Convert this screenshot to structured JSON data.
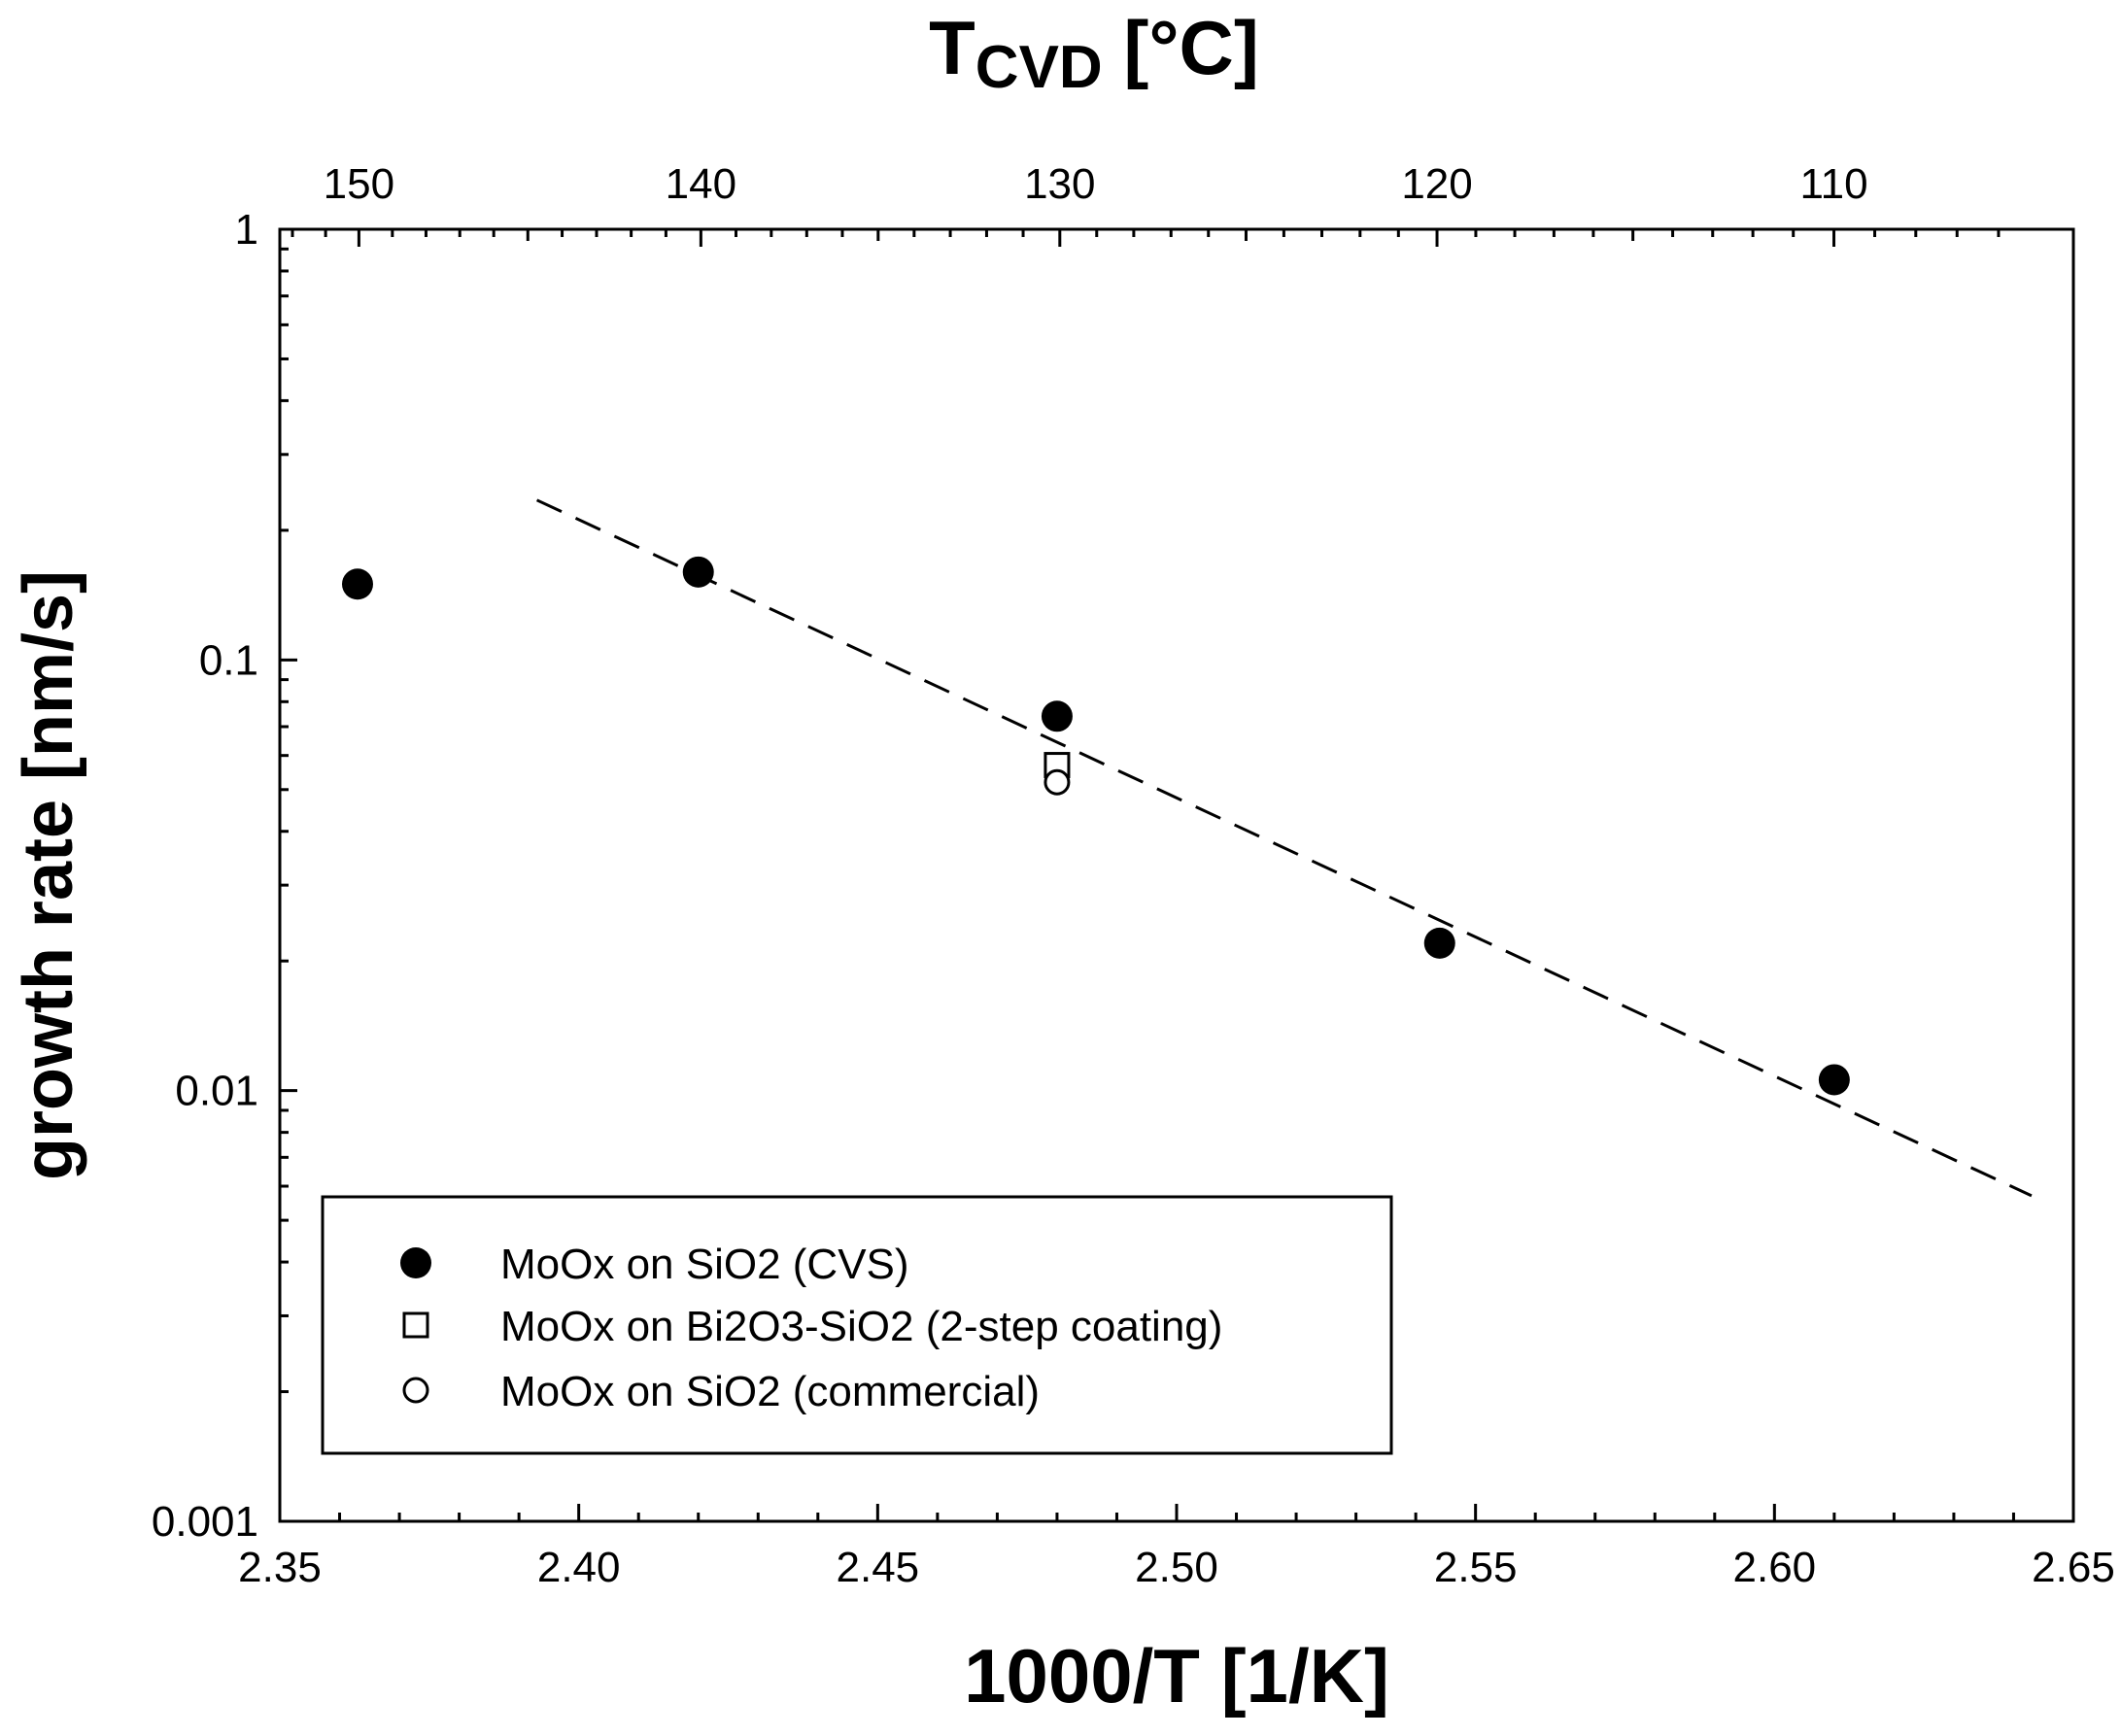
{
  "chart_data": {
    "type": "scatter",
    "title": "",
    "xlabel": "1000/T [1/K]",
    "ylabel": "growth rate [nm/s]",
    "top_xlabel": {
      "main": "T",
      "subscript": "CVD",
      "unit": " [°C]"
    },
    "xlim": [
      2.35,
      2.65
    ],
    "ylim": [
      0.001,
      1
    ],
    "yscale": "log",
    "x_ticks": [
      2.35,
      2.4,
      2.45,
      2.5,
      2.55,
      2.6,
      2.65
    ],
    "x_tick_labels": [
      "2.35",
      "2.40",
      "2.45",
      "2.50",
      "2.55",
      "2.60",
      "2.65"
    ],
    "y_ticks": [
      0.001,
      0.01,
      0.1,
      1
    ],
    "y_tick_labels": [
      "0.001",
      "0.01",
      "0.1",
      "1"
    ],
    "top_ticks_celsius": [
      150,
      140,
      130,
      120,
      110
    ],
    "top_tick_labels": [
      "150",
      "140",
      "130",
      "120",
      "110"
    ],
    "grid": false,
    "legend_position": "bottom-left",
    "series": [
      {
        "name": "MoOx on SiO2 (CVS)",
        "marker": "filled-circle",
        "x": [
          2.363,
          2.42,
          2.48,
          2.544,
          2.61
        ],
        "y": [
          0.15,
          0.16,
          0.074,
          0.022,
          0.0106
        ]
      },
      {
        "name": "MoOx on Bi2O3-SiO2 (2-step coating)",
        "marker": "open-square",
        "x": [
          2.48
        ],
        "y": [
          0.057
        ]
      },
      {
        "name": "MoOx on SiO2 (commercial)",
        "marker": "open-circle",
        "x": [
          2.48
        ],
        "y": [
          0.052
        ]
      }
    ],
    "fit_line": {
      "style": "dashed",
      "x": [
        2.393,
        2.643
      ],
      "y": [
        0.235,
        0.0057
      ]
    }
  }
}
